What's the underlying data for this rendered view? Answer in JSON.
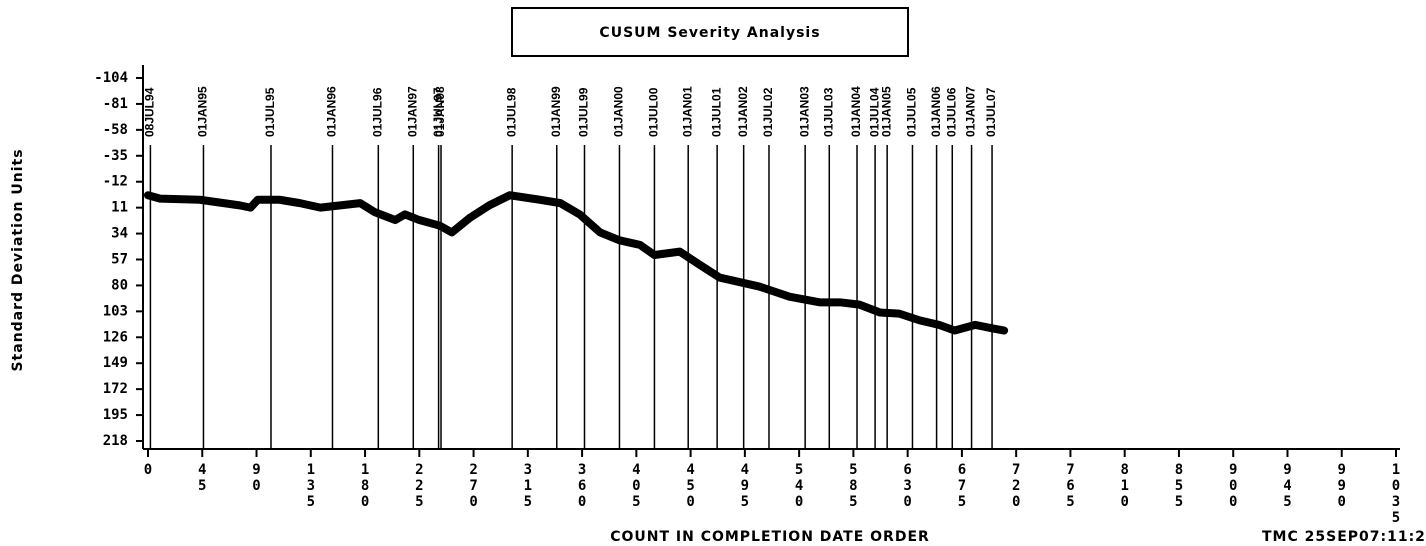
{
  "chart_data": {
    "type": "line",
    "title": "CUSUM Severity Analysis",
    "x_label": "COUNT IN COMPLETION DATE ORDER",
    "y_label": "Standard Deviation Units",
    "footnote": "TMC  25SEP07:11:2",
    "y_inverted": true,
    "color": "#000000",
    "xlim": [
      0,
      1035
    ],
    "xticks": [
      0,
      45,
      90,
      135,
      180,
      225,
      270,
      315,
      360,
      405,
      450,
      495,
      540,
      585,
      630,
      675,
      720,
      765,
      810,
      855,
      900,
      945,
      990,
      1035
    ],
    "ylim": [
      -104,
      218
    ],
    "yticks": [
      -104,
      -81,
      -58,
      -35,
      -12,
      11,
      34,
      57,
      80,
      103,
      126,
      149,
      172,
      195,
      218
    ],
    "reference_lines": [
      {
        "x": 2,
        "label": "08JUL94"
      },
      {
        "x": 46,
        "label": "01JAN95"
      },
      {
        "x": 102,
        "label": "01JUL95"
      },
      {
        "x": 153,
        "label": "01JAN96"
      },
      {
        "x": 191,
        "label": "01JUL96"
      },
      {
        "x": 220,
        "label": "01JAN97"
      },
      {
        "x": 241,
        "label": "01JUL97"
      },
      {
        "x": 243,
        "label": "01JAN98"
      },
      {
        "x": 302,
        "label": "01JUL98"
      },
      {
        "x": 339,
        "label": "01JAN99"
      },
      {
        "x": 362,
        "label": "01JUL99"
      },
      {
        "x": 391,
        "label": "01JAN00"
      },
      {
        "x": 420,
        "label": "01JUL00"
      },
      {
        "x": 448,
        "label": "01JAN01"
      },
      {
        "x": 472,
        "label": "01JUL01"
      },
      {
        "x": 494,
        "label": "01JAN02"
      },
      {
        "x": 515,
        "label": "01JUL02"
      },
      {
        "x": 545,
        "label": "01JAN03"
      },
      {
        "x": 565,
        "label": "01JUL03"
      },
      {
        "x": 588,
        "label": "01JAN04"
      },
      {
        "x": 603,
        "label": "01JUL04"
      },
      {
        "x": 613,
        "label": "01JAN05"
      },
      {
        "x": 634,
        "label": "01JUL05"
      },
      {
        "x": 654,
        "label": "01JAN06"
      },
      {
        "x": 667,
        "label": "01JUL06"
      },
      {
        "x": 683,
        "label": "01JAN07"
      },
      {
        "x": 700,
        "label": "01JUL07"
      }
    ],
    "x": [
      0,
      10,
      43,
      76,
      85,
      91,
      109,
      126,
      143,
      176,
      188,
      205,
      213,
      225,
      242,
      252,
      267,
      283,
      300,
      325,
      342,
      358,
      375,
      391,
      408,
      420,
      441,
      458,
      474,
      507,
      532,
      557,
      574,
      590,
      607,
      623,
      640,
      656,
      669,
      686,
      700,
      710
    ],
    "values": [
      0,
      3,
      4,
      9,
      11,
      4,
      4,
      7,
      11,
      7,
      15,
      22,
      17,
      22,
      27,
      33,
      20,
      9,
      0,
      4,
      7,
      17,
      33,
      40,
      44,
      53,
      50,
      62,
      73,
      81,
      90,
      95,
      95,
      97,
      104,
      105,
      111,
      115,
      120,
      115,
      118,
      120
    ]
  }
}
